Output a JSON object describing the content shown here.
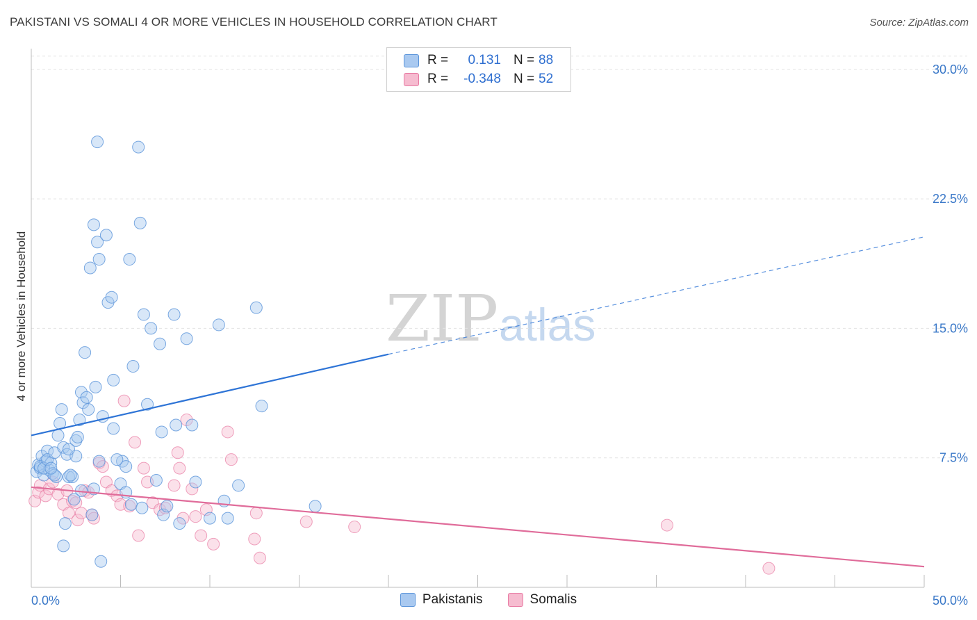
{
  "title": "PAKISTANI VS SOMALI 4 OR MORE VEHICLES IN HOUSEHOLD CORRELATION CHART",
  "source": "Source: ZipAtlas.com",
  "watermark": {
    "zip": "ZIP",
    "atlas": "atlas"
  },
  "legend": {
    "r_label": "R =",
    "n_label": "N =",
    "rows": [
      {
        "series": "Pakistanis",
        "r": "0.131",
        "n": "88",
        "color": "#a9c9f0"
      },
      {
        "series": "Somalis",
        "r": "-0.348",
        "n": "52",
        "color": "#f6bcd0"
      }
    ]
  },
  "colors": {
    "blue": "#5a94da",
    "blue_fill": "#a9c9f0",
    "pink": "#e87aa3",
    "pink_fill": "#f6bcd0",
    "trend_blue": "#2e74d6",
    "trend_pink": "#e06c9a",
    "tick": "#3a78c8"
  },
  "chart_data": {
    "type": "scatter",
    "title": "PAKISTANI VS SOMALI 4 OR MORE VEHICLES IN HOUSEHOLD CORRELATION CHART",
    "xlabel": "",
    "ylabel": "4 or more Vehicles in Household",
    "xlim": [
      0,
      50
    ],
    "ylim": [
      0,
      31.2
    ],
    "x_tick_labels": [
      "0.0%",
      "50.0%"
    ],
    "y_ticks": [
      7.5,
      15.0,
      22.5,
      30.0
    ],
    "y_tick_labels": [
      "7.5%",
      "15.0%",
      "22.5%",
      "30.0%"
    ],
    "grid": true,
    "legend_position": "top-center",
    "series": [
      {
        "name": "Pakistanis",
        "color": "#5a94da",
        "trend": {
          "x": [
            0,
            20
          ],
          "y": [
            8.8,
            13.5
          ],
          "dashed_to": [
            50,
            20.3
          ]
        },
        "points": [
          [
            0.3,
            6.7
          ],
          [
            0.4,
            7.1
          ],
          [
            0.5,
            6.9
          ],
          [
            0.6,
            7.6
          ],
          [
            0.7,
            6.5
          ],
          [
            0.8,
            7.3
          ],
          [
            0.9,
            7.9
          ],
          [
            1.0,
            6.8
          ],
          [
            1.1,
            7.2
          ],
          [
            1.2,
            6.6
          ],
          [
            0.5,
            7.0
          ],
          [
            0.7,
            6.9
          ],
          [
            0.9,
            7.4
          ],
          [
            1.3,
            7.8
          ],
          [
            1.4,
            6.4
          ],
          [
            1.5,
            8.8
          ],
          [
            1.6,
            9.5
          ],
          [
            1.7,
            10.3
          ],
          [
            1.8,
            8.1
          ],
          [
            2.0,
            7.7
          ],
          [
            2.1,
            6.4
          ],
          [
            2.3,
            6.4
          ],
          [
            2.5,
            8.5
          ],
          [
            2.6,
            8.7
          ],
          [
            2.7,
            9.7
          ],
          [
            2.8,
            11.3
          ],
          [
            2.9,
            10.7
          ],
          [
            3.0,
            13.6
          ],
          [
            3.1,
            11.0
          ],
          [
            3.2,
            10.3
          ],
          [
            3.4,
            4.2
          ],
          [
            3.6,
            11.6
          ],
          [
            3.8,
            7.3
          ],
          [
            4.0,
            9.9
          ],
          [
            3.7,
            20.0
          ],
          [
            3.5,
            21.0
          ],
          [
            3.8,
            19.0
          ],
          [
            3.3,
            18.5
          ],
          [
            4.2,
            20.4
          ],
          [
            4.3,
            16.5
          ],
          [
            4.5,
            16.8
          ],
          [
            3.7,
            25.8
          ],
          [
            4.6,
            12.0
          ],
          [
            4.6,
            9.2
          ],
          [
            5.0,
            6.0
          ],
          [
            5.1,
            7.3
          ],
          [
            5.3,
            7.0
          ],
          [
            5.5,
            19.0
          ],
          [
            5.6,
            4.8
          ],
          [
            5.7,
            12.8
          ],
          [
            6.0,
            25.5
          ],
          [
            6.1,
            21.1
          ],
          [
            6.3,
            15.8
          ],
          [
            6.5,
            10.6
          ],
          [
            6.7,
            15.0
          ],
          [
            7.0,
            6.2
          ],
          [
            7.2,
            14.1
          ],
          [
            7.3,
            9.0
          ],
          [
            7.4,
            4.2
          ],
          [
            7.6,
            4.7
          ],
          [
            8.0,
            15.8
          ],
          [
            8.1,
            9.4
          ],
          [
            8.3,
            3.7
          ],
          [
            8.7,
            14.4
          ],
          [
            9.0,
            9.4
          ],
          [
            9.2,
            6.1
          ],
          [
            10.0,
            4.0
          ],
          [
            10.5,
            15.2
          ],
          [
            10.8,
            5.0
          ],
          [
            11.0,
            4.0
          ],
          [
            11.6,
            5.9
          ],
          [
            12.6,
            16.2
          ],
          [
            12.9,
            10.5
          ],
          [
            15.9,
            4.7
          ],
          [
            2.5,
            7.6
          ],
          [
            2.1,
            8.0
          ],
          [
            1.3,
            6.5
          ],
          [
            1.1,
            6.9
          ],
          [
            2.8,
            5.6
          ],
          [
            3.5,
            5.7
          ],
          [
            1.9,
            3.7
          ],
          [
            1.8,
            2.4
          ],
          [
            3.9,
            1.5
          ],
          [
            5.3,
            5.5
          ],
          [
            4.8,
            7.4
          ],
          [
            6.2,
            4.6
          ],
          [
            2.4,
            5.1
          ],
          [
            2.2,
            6.5
          ]
        ]
      },
      {
        "name": "Somalis",
        "color": "#e87aa3",
        "trend": {
          "x": [
            0,
            50
          ],
          "y": [
            5.8,
            1.2
          ]
        },
        "points": [
          [
            0.2,
            5.0
          ],
          [
            0.4,
            5.5
          ],
          [
            0.5,
            5.9
          ],
          [
            0.8,
            5.3
          ],
          [
            1.0,
            5.7
          ],
          [
            1.2,
            6.1
          ],
          [
            1.5,
            5.4
          ],
          [
            1.8,
            4.8
          ],
          [
            2.0,
            5.6
          ],
          [
            2.1,
            4.3
          ],
          [
            2.3,
            5.0
          ],
          [
            2.5,
            4.9
          ],
          [
            2.6,
            3.9
          ],
          [
            2.8,
            4.3
          ],
          [
            3.0,
            5.6
          ],
          [
            3.2,
            5.5
          ],
          [
            3.4,
            4.2
          ],
          [
            3.5,
            4.0
          ],
          [
            3.8,
            7.2
          ],
          [
            4.0,
            7.0
          ],
          [
            4.2,
            6.1
          ],
          [
            4.5,
            5.6
          ],
          [
            4.8,
            5.3
          ],
          [
            5.0,
            4.8
          ],
          [
            5.2,
            10.8
          ],
          [
            5.5,
            4.7
          ],
          [
            5.8,
            8.4
          ],
          [
            6.0,
            3.0
          ],
          [
            6.3,
            6.9
          ],
          [
            6.5,
            6.1
          ],
          [
            6.8,
            4.9
          ],
          [
            7.2,
            4.5
          ],
          [
            7.5,
            4.6
          ],
          [
            8.0,
            5.9
          ],
          [
            8.2,
            7.8
          ],
          [
            8.3,
            6.9
          ],
          [
            8.5,
            4.0
          ],
          [
            8.7,
            9.7
          ],
          [
            9.0,
            5.7
          ],
          [
            9.2,
            4.1
          ],
          [
            9.5,
            3.0
          ],
          [
            9.8,
            4.5
          ],
          [
            10.2,
            2.5
          ],
          [
            11.0,
            9.0
          ],
          [
            11.2,
            7.4
          ],
          [
            12.5,
            2.8
          ],
          [
            12.6,
            4.3
          ],
          [
            12.8,
            1.7
          ],
          [
            15.4,
            3.8
          ],
          [
            18.1,
            3.5
          ],
          [
            35.6,
            3.6
          ],
          [
            41.3,
            1.1
          ]
        ]
      }
    ]
  }
}
